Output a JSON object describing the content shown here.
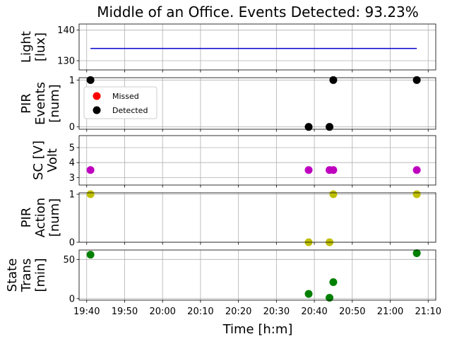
{
  "chart_data": {
    "type": "scatter",
    "title": "Middle of an Office. Events Detected: 93.23%",
    "xlabel": "Time [h:m]",
    "x_ticks": [
      "19:40",
      "19:50",
      "20:00",
      "20:10",
      "20:20",
      "20:30",
      "20:40",
      "20:50",
      "21:00",
      "21:10"
    ],
    "xlim": [
      "19:38",
      "21:12"
    ],
    "grid": true,
    "panels": [
      {
        "id": "light",
        "ylabel_lines": [
          "Light",
          "[lux]"
        ],
        "ylim": [
          127,
          142
        ],
        "yticks": [
          130,
          140
        ],
        "series": [
          {
            "type": "line",
            "color": "#0000cc",
            "x": [
              "19:41",
              "21:07"
            ],
            "y": [
              134,
              134
            ]
          }
        ]
      },
      {
        "id": "pir_events",
        "ylabel_lines": [
          "PIR",
          "Events",
          "[num]"
        ],
        "ylim": [
          -0.05,
          1.05
        ],
        "yticks": [
          0,
          1
        ],
        "legend": {
          "placement": "upper-left",
          "entries": [
            "Missed",
            "Detected"
          ]
        },
        "series": [
          {
            "name": "Missed",
            "color": "#ff0000",
            "x": [],
            "y": []
          },
          {
            "name": "Detected",
            "color": "#000000",
            "x": [
              "19:41",
              "20:38:30",
              "20:44",
              "20:45",
              "21:07"
            ],
            "y": [
              1,
              0,
              0,
              1,
              1
            ]
          }
        ]
      },
      {
        "id": "sc_volt",
        "ylabel_lines": [
          "SC [V]",
          "Volt"
        ],
        "ylim": [
          2.5,
          5.8
        ],
        "yticks": [
          3,
          4,
          5
        ],
        "series": [
          {
            "color": "#bf00bf",
            "x": [
              "19:41",
              "20:38:30",
              "20:44",
              "20:45",
              "21:07"
            ],
            "y": [
              3.5,
              3.5,
              3.5,
              3.5,
              3.5
            ]
          }
        ]
      },
      {
        "id": "pir_action",
        "ylabel_lines": [
          "PIR",
          "Action",
          "[num]"
        ],
        "ylim": [
          0,
          1.03
        ],
        "yticks": [
          0,
          1
        ],
        "series": [
          {
            "color": "#bfbf00",
            "x": [
              "19:41",
              "20:38:30",
              "20:44",
              "20:45",
              "21:07"
            ],
            "y": [
              1,
              0,
              0,
              1,
              1
            ]
          }
        ]
      },
      {
        "id": "state_trans",
        "ylabel_lines": [
          "State",
          "Trans",
          "[min]"
        ],
        "ylim": [
          -2,
          62
        ],
        "yticks": [
          0,
          50
        ],
        "series": [
          {
            "color": "#008000",
            "x": [
              "19:41",
              "20:38:30",
              "20:44",
              "20:45",
              "21:07"
            ],
            "y": [
              56,
              6,
              1,
              21,
              58
            ]
          }
        ]
      }
    ]
  }
}
